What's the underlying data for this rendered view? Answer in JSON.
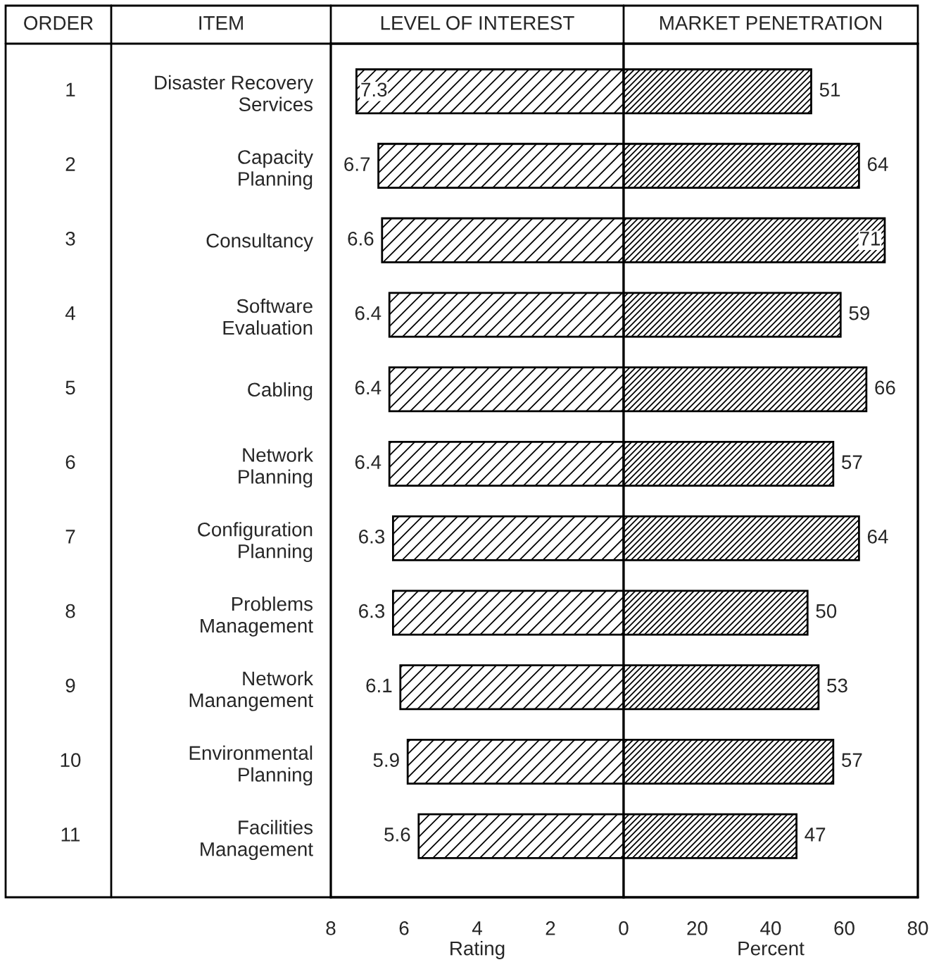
{
  "chart_data": [
    {
      "type": "bar",
      "orientation": "horizontal",
      "title": "LEVEL OF INTEREST",
      "xlabel": "Rating",
      "categories": [
        "Disaster Recovery\nServices",
        "Capacity\nPlanning",
        "Consultancy",
        "Software\nEvaluation",
        "Cabling",
        "Network\nPlanning",
        "Configuration\nPlanning",
        "Problems\nManagement",
        "Network\nManangement",
        "Environmental\nPlanning",
        "Facilities\nManagement"
      ],
      "values": [
        7.3,
        6.7,
        6.6,
        6.4,
        6.4,
        6.4,
        6.3,
        6.3,
        6.1,
        5.9,
        5.6
      ],
      "color": "#000000",
      "xlim": [
        8,
        0
      ],
      "xticks": [
        8,
        6,
        4,
        2,
        0
      ],
      "data_labels": true,
      "annotations": [
        "ORDER",
        "ITEM",
        "1",
        "2",
        "3",
        "4",
        "5",
        "6",
        "7",
        "8",
        "9",
        "10",
        "11"
      ]
    },
    {
      "type": "bar",
      "orientation": "horizontal",
      "title": "MARKET PENETRATION",
      "xlabel": "Percent",
      "categories": [
        null,
        null,
        null,
        null,
        null,
        null,
        null,
        null,
        null,
        null,
        null
      ],
      "values": [
        51,
        64,
        71,
        59,
        66,
        57,
        64,
        50,
        53,
        57,
        47
      ],
      "color": "#000000",
      "xlim": [
        0,
        80
      ],
      "xticks": [
        20,
        40,
        60,
        80
      ],
      "data_labels": true,
      "tick_labels": "x"
    }
  ]
}
